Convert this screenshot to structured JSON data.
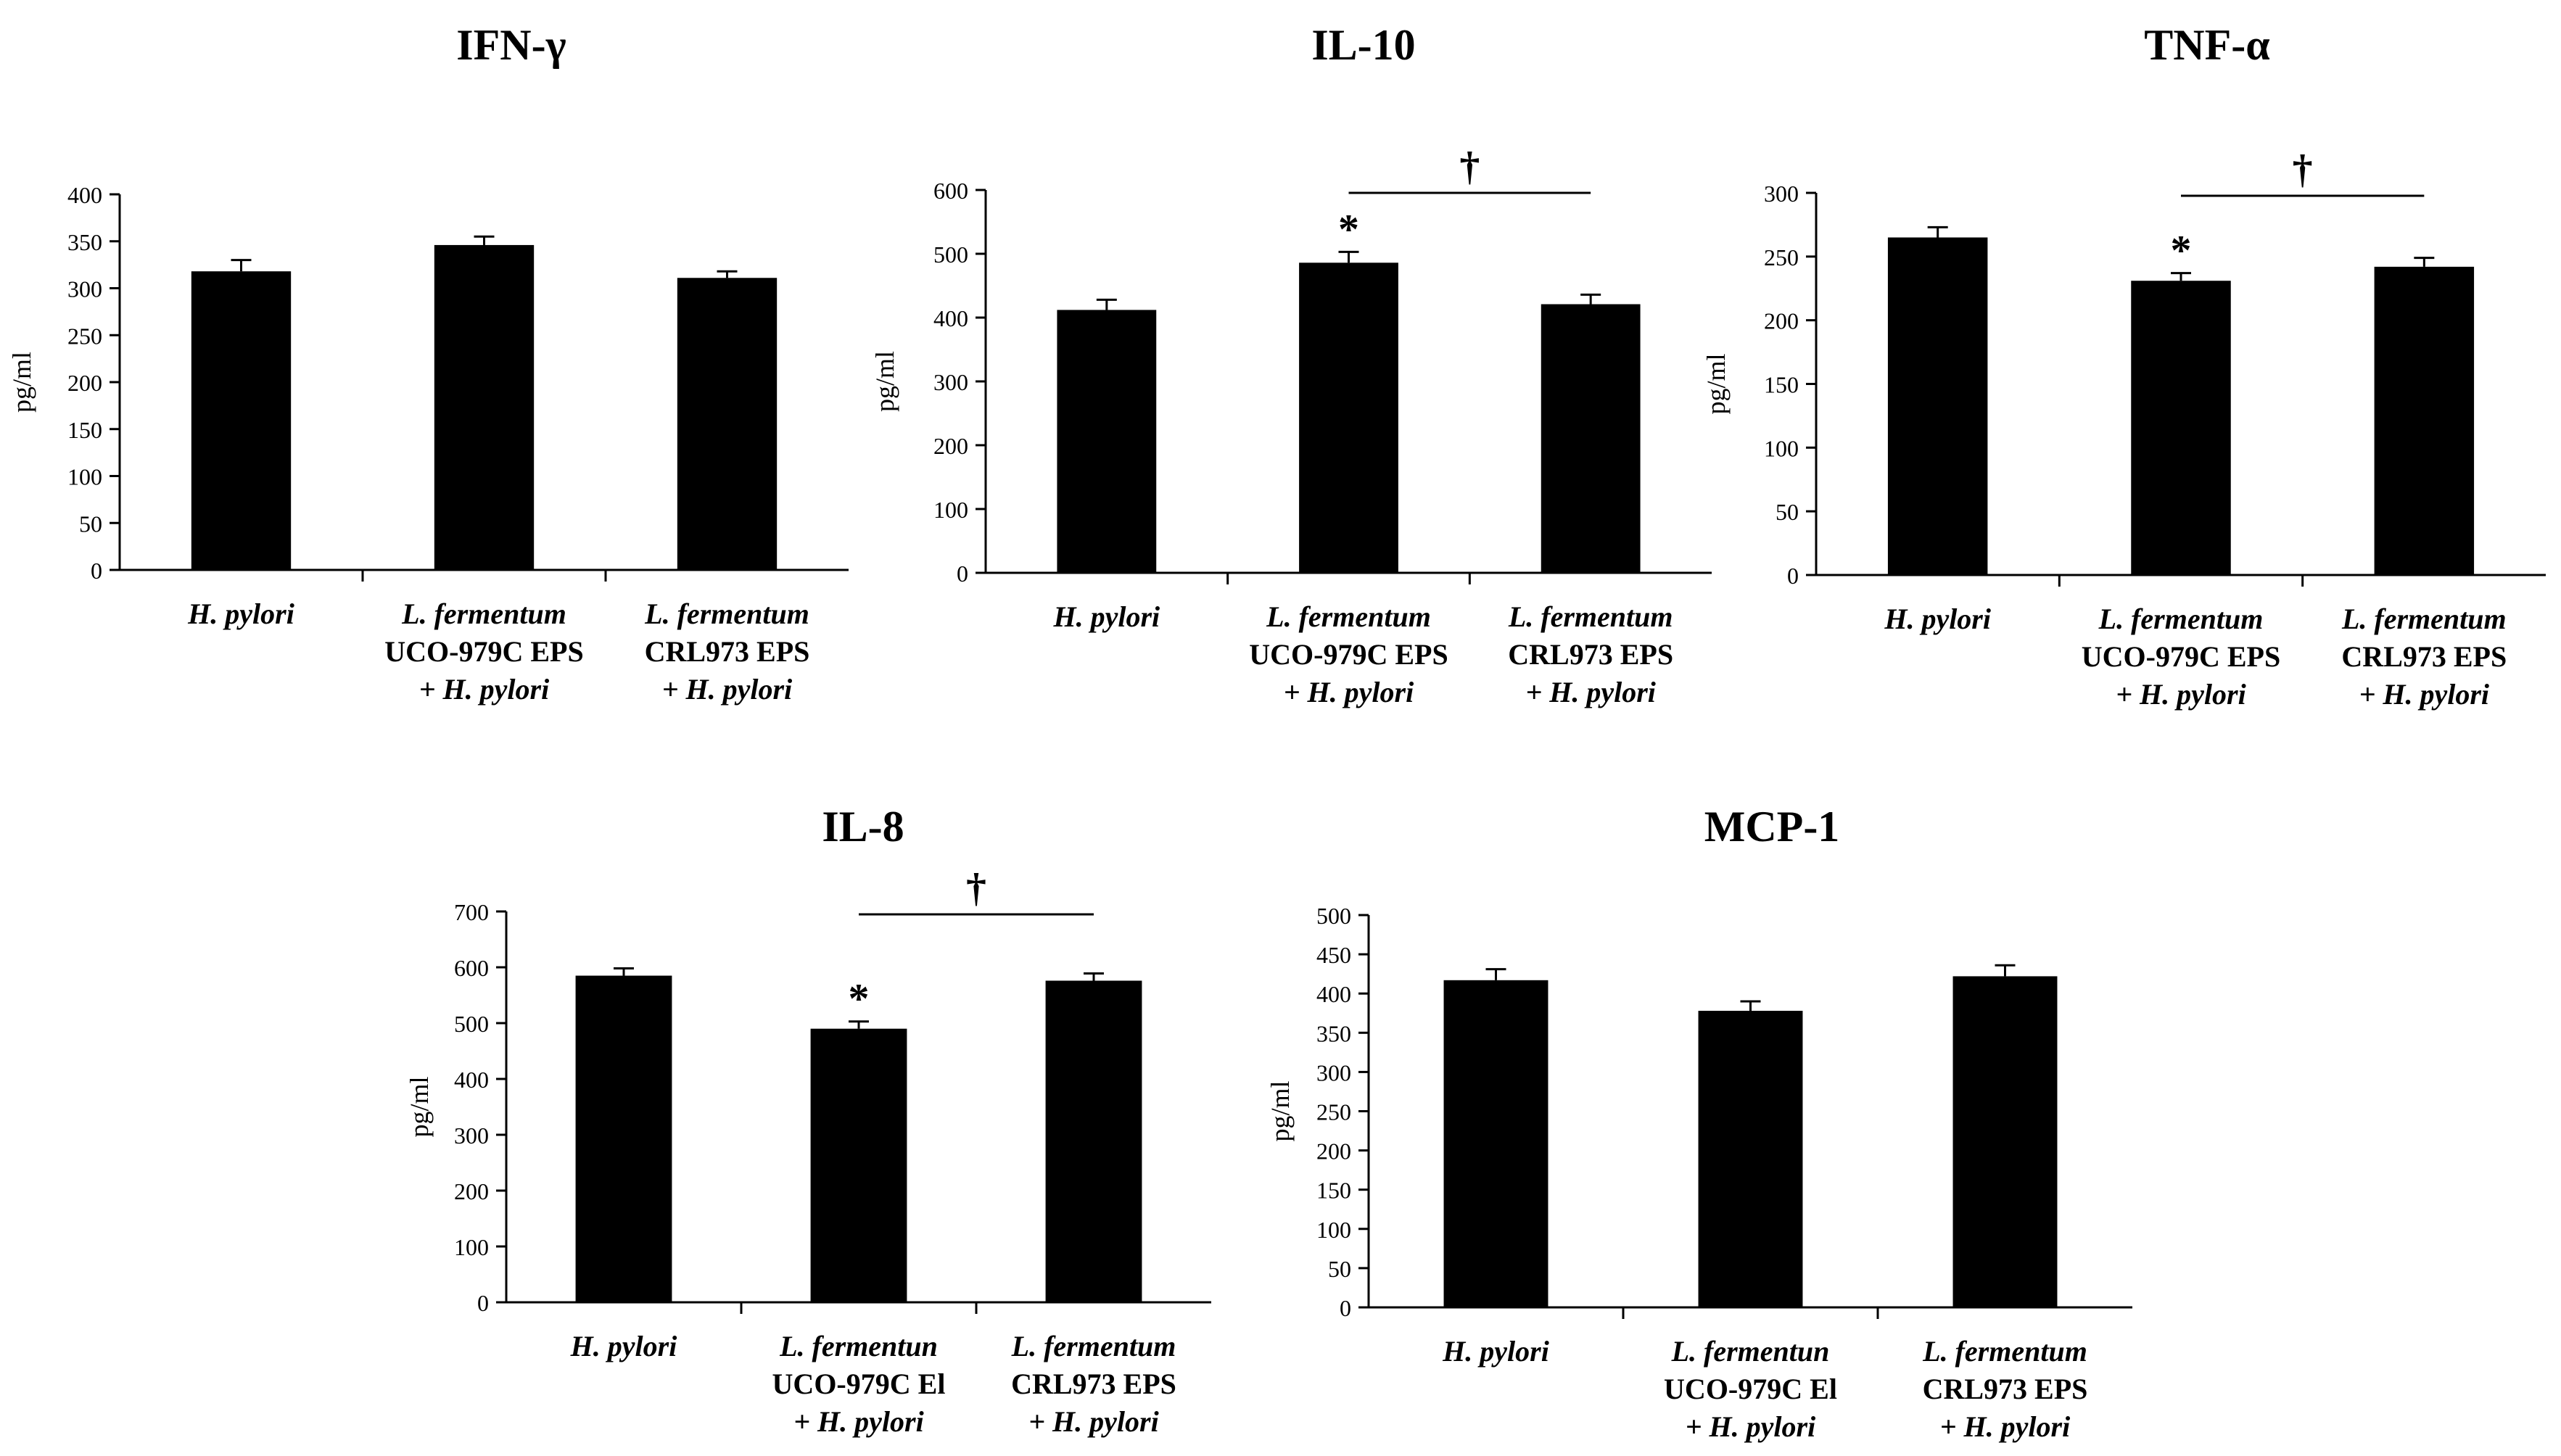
{
  "chart_data": [
    {
      "type": "bar",
      "title": "IFN-γ",
      "ylabel": "pg/ml",
      "xlabel": "",
      "ylim": [
        0,
        400
      ],
      "yticks": [
        0,
        50,
        100,
        150,
        200,
        250,
        300,
        350,
        400
      ],
      "categories": [
        {
          "lines": [
            "H. pylori"
          ]
        },
        {
          "lines": [
            "L. fermentum",
            "UCO-979C  EPS",
            "+ H. pylori"
          ]
        },
        {
          "lines": [
            "L. fermentum",
            "CRL973  EPS",
            "+ H. pylori"
          ]
        }
      ],
      "values": [
        318,
        346,
        311
      ],
      "errors": [
        12,
        9,
        7
      ],
      "markers": [
        "",
        "",
        ""
      ],
      "bracket": null
    },
    {
      "type": "bar",
      "title": "IL-10",
      "ylabel": "pg/ml",
      "xlabel": "",
      "ylim": [
        0,
        600
      ],
      "yticks": [
        0,
        100,
        200,
        300,
        400,
        500,
        600
      ],
      "categories": [
        {
          "lines": [
            "H. pylori"
          ]
        },
        {
          "lines": [
            "L. fermentum",
            "UCO-979C  EPS",
            "+ H. pylori"
          ]
        },
        {
          "lines": [
            "L. fermentum",
            "CRL973  EPS",
            "+ H. pylori"
          ]
        }
      ],
      "values": [
        412,
        486,
        421
      ],
      "errors": [
        16,
        17,
        15
      ],
      "markers": [
        "",
        "*",
        ""
      ],
      "bracket": {
        "from": 1,
        "to": 2,
        "symbol": "†"
      }
    },
    {
      "type": "bar",
      "title": "TNF-α",
      "ylabel": "pg/ml",
      "xlabel": "",
      "ylim": [
        0,
        300
      ],
      "yticks": [
        0,
        50,
        100,
        150,
        200,
        250,
        300
      ],
      "categories": [
        {
          "lines": [
            "H. pylori"
          ]
        },
        {
          "lines": [
            "L. fermentum",
            "UCO-979C  EPS",
            "+ H. pylori"
          ]
        },
        {
          "lines": [
            "L. fermentum",
            "CRL973  EPS",
            "+ H. pylori"
          ]
        }
      ],
      "values": [
        265,
        231,
        242
      ],
      "errors": [
        8,
        6,
        7
      ],
      "markers": [
        "",
        "*",
        ""
      ],
      "bracket": {
        "from": 1,
        "to": 2,
        "symbol": "†"
      }
    },
    {
      "type": "bar",
      "title": "IL-8",
      "ylabel": "pg/ml",
      "xlabel": "",
      "ylim": [
        0,
        700
      ],
      "yticks": [
        0,
        100,
        200,
        300,
        400,
        500,
        600,
        700
      ],
      "categories": [
        {
          "lines": [
            "H. pylori"
          ]
        },
        {
          "lines": [
            "L. fermentun",
            "UCO-979C  El",
            "+ H. pylori"
          ]
        },
        {
          "lines": [
            "L. fermentum",
            "CRL973  EPS",
            "+ H. pylori"
          ]
        }
      ],
      "values": [
        585,
        490,
        576
      ],
      "errors": [
        13,
        13,
        13
      ],
      "markers": [
        "",
        "*",
        ""
      ],
      "bracket": {
        "from": 1,
        "to": 2,
        "symbol": "†"
      }
    },
    {
      "type": "bar",
      "title": "MCP-1",
      "ylabel": "pg/ml",
      "xlabel": "",
      "ylim": [
        0,
        500
      ],
      "yticks": [
        0,
        50,
        100,
        150,
        200,
        250,
        300,
        350,
        400,
        450,
        500
      ],
      "categories": [
        {
          "lines": [
            "H. pylori"
          ]
        },
        {
          "lines": [
            "L. fermentun",
            "UCO-979C  El",
            "+ H. pylori"
          ]
        },
        {
          "lines": [
            "L. fermentum",
            "CRL973  EPS",
            "+ H. pylori"
          ]
        }
      ],
      "values": [
        417,
        378,
        422
      ],
      "errors": [
        14,
        12,
        14
      ],
      "markers": [
        "",
        "",
        ""
      ],
      "bracket": null
    }
  ]
}
